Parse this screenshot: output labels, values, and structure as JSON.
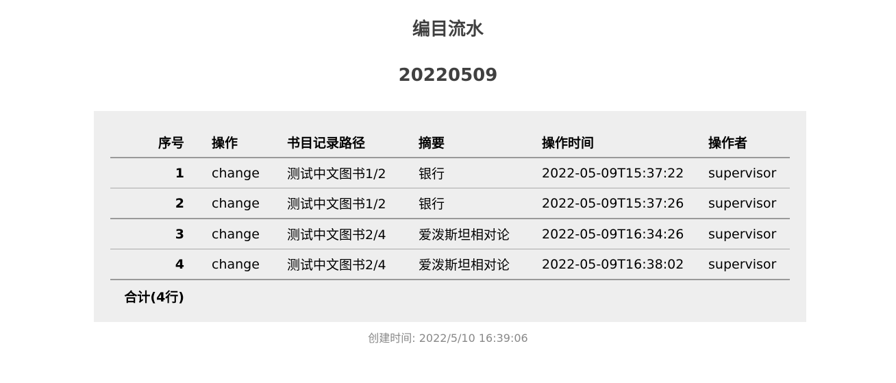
{
  "title": "编目流水",
  "date": "20220509",
  "table": {
    "headers": [
      "序号",
      "操作",
      "书目记录路径",
      "摘要",
      "操作时间",
      "操作者"
    ],
    "rows": [
      {
        "no": "1",
        "op": "change",
        "path": "测试中文图书1/2",
        "summary": "银行",
        "time": "2022-05-09T15:37:22",
        "operator": "supervisor"
      },
      {
        "no": "2",
        "op": "change",
        "path": "测试中文图书1/2",
        "summary": "银行",
        "time": "2022-05-09T15:37:26",
        "operator": "supervisor"
      },
      {
        "no": "3",
        "op": "change",
        "path": "测试中文图书2/4",
        "summary": "爱泼斯坦相对论",
        "time": "2022-05-09T16:34:26",
        "operator": "supervisor"
      },
      {
        "no": "4",
        "op": "change",
        "path": "测试中文图书2/4",
        "summary": "爱泼斯坦相对论",
        "time": "2022-05-09T16:38:02",
        "operator": "supervisor"
      }
    ],
    "total": "合计(4行)"
  },
  "footer": "创建时间: 2022/5/10 16:39:06",
  "colors": {
    "panel_bg": "#eeeeee",
    "title": "#404040",
    "footer": "#888888"
  }
}
